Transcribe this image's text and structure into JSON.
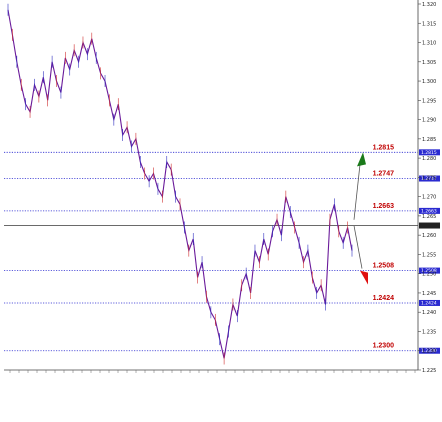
{
  "chart_data": {
    "type": "line",
    "title": "",
    "xlabel": "",
    "ylabel": "",
    "ylim": [
      1.225,
      1.32
    ],
    "price_scale": [
      "1.320",
      "1.315",
      "1.310",
      "1.305",
      "1.300",
      "1.295",
      "1.290",
      "1.285",
      "1.280",
      "1.275",
      "1.270",
      "1.265",
      "1.260",
      "1.255",
      "1.250",
      "1.245",
      "1.240",
      "1.235",
      "1.230",
      "1.225"
    ],
    "horizontal_levels": [
      {
        "label": "1.2815",
        "value": 1.2815,
        "style": "dotted",
        "color": "#2a2ad0"
      },
      {
        "label": "1.2747",
        "value": 1.2747,
        "style": "dotted",
        "color": "#2a2ad0"
      },
      {
        "label": "1.2663",
        "value": 1.2663,
        "style": "dotted",
        "color": "#2a2ad0"
      },
      {
        "label": "",
        "value": 1.2625,
        "style": "solid",
        "color": "#555555"
      },
      {
        "label": "1.2508",
        "value": 1.2508,
        "style": "dotted",
        "color": "#2a2ad0"
      },
      {
        "label": "1.2424",
        "value": 1.2424,
        "style": "dotted",
        "color": "#2a2ad0"
      },
      {
        "label": "1.2300",
        "value": 1.23,
        "style": "dotted",
        "color": "#2a2ad0"
      }
    ],
    "series": [
      {
        "values": [
          1.3185,
          1.312,
          1.305,
          1.299,
          1.294,
          1.292,
          1.299,
          1.296,
          1.301,
          1.295,
          1.305,
          1.3,
          1.297,
          1.306,
          1.303,
          1.308,
          1.305,
          1.31,
          1.307,
          1.311,
          1.306,
          1.302,
          1.3,
          1.295,
          1.29,
          1.294,
          1.286,
          1.288,
          1.283,
          1.285,
          1.279,
          1.276,
          1.274,
          1.276,
          1.272,
          1.27,
          1.279,
          1.277,
          1.27,
          1.268,
          1.262,
          1.256,
          1.259,
          1.249,
          1.253,
          1.244,
          1.24,
          1.238,
          1.233,
          1.228,
          1.235,
          1.242,
          1.239,
          1.247,
          1.25,
          1.245,
          1.256,
          1.253,
          1.259,
          1.255,
          1.261,
          1.264,
          1.26,
          1.27,
          1.266,
          1.262,
          1.258,
          1.253,
          1.256,
          1.249,
          1.245,
          1.247,
          1.242,
          1.264,
          1.268,
          1.261,
          1.258,
          1.262,
          1.256
        ]
      }
    ],
    "annotations": {
      "up_arrow": {
        "color": "#1a7a1a",
        "target": 1.2815
      },
      "down_arrow": {
        "color": "#e01010",
        "target": 1.2508
      }
    },
    "grid": false,
    "legend": "none"
  }
}
